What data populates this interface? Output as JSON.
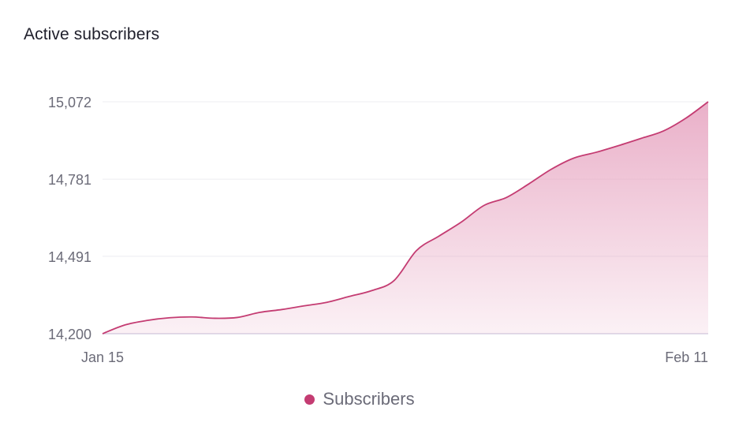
{
  "title": "Active subscribers",
  "colors": {
    "series": "#c43c72",
    "fill": "#e6a2bf",
    "grid": "#ececf1",
    "baseline": "#d6d2e3",
    "tick_text": "#6b6b78"
  },
  "chart_data": {
    "type": "area",
    "title": "Active subscribers",
    "xlabel": "",
    "ylabel": "",
    "x_tick_labels": [
      "Jan 15",
      "Feb 11"
    ],
    "y_ticks": [
      14200,
      14491,
      14781,
      15072
    ],
    "y_tick_labels": [
      "14,200",
      "14,491",
      "14,781",
      "15,072"
    ],
    "ylim": [
      14200,
      15072
    ],
    "grid": true,
    "legend_position": "bottom-center",
    "series": [
      {
        "name": "Subscribers",
        "x": [
          "Jan 15",
          "Jan 16",
          "Jan 17",
          "Jan 18",
          "Jan 19",
          "Jan 20",
          "Jan 21",
          "Jan 22",
          "Jan 23",
          "Jan 24",
          "Jan 25",
          "Jan 26",
          "Jan 27",
          "Jan 28",
          "Jan 29",
          "Jan 30",
          "Jan 31",
          "Feb 1",
          "Feb 2",
          "Feb 3",
          "Feb 4",
          "Feb 5",
          "Feb 6",
          "Feb 7",
          "Feb 8",
          "Feb 9",
          "Feb 10",
          "Feb 11"
        ],
        "values": [
          14200,
          14233,
          14250,
          14260,
          14263,
          14258,
          14261,
          14280,
          14291,
          14305,
          14318,
          14340,
          14362,
          14400,
          14513,
          14567,
          14620,
          14682,
          14712,
          14763,
          14818,
          14860,
          14882,
          14907,
          14934,
          14962,
          15010,
          15072
        ]
      }
    ]
  }
}
